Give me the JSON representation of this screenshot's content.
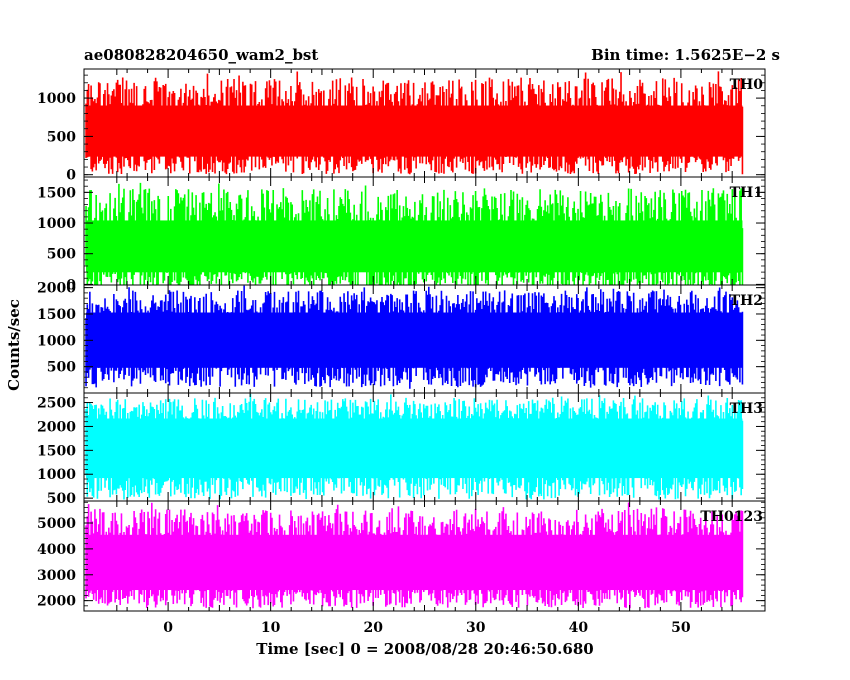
{
  "header": {
    "title": "ae080828204650_wam2_bst",
    "bin_time": "Bin time: 1.5625E−2 s"
  },
  "chart_data": {
    "type": "line",
    "xlabel": "Time [sec] 0 = 2008/08/28 20:46:50.680",
    "ylabel": "Counts/sec",
    "xlim": [
      -8.2,
      58.2
    ],
    "x_ticks": [
      0,
      10,
      20,
      30,
      40,
      50
    ],
    "x_ticklabels": [
      "0",
      "10",
      "20",
      "30",
      "40",
      "50"
    ],
    "data_x_range": [
      -8.0,
      56.0
    ],
    "panels": [
      {
        "name": "TH0",
        "color": "#ff0000",
        "ylim": [
          -30,
          1380
        ],
        "yticks": [
          0,
          500,
          1000
        ],
        "yticklabels": [
          "0",
          "500",
          "1000"
        ],
        "series": {
          "mean": 560,
          "typical_low": 200,
          "typical_high": 950,
          "max": 1360,
          "min": 40
        }
      },
      {
        "name": "TH1",
        "color": "#00ff00",
        "ylim": [
          -10,
          1750
        ],
        "yticks": [
          0,
          500,
          1000,
          1500
        ],
        "yticklabels": [
          "0",
          "500",
          "1000",
          "1500"
        ],
        "series": {
          "mean": 620,
          "typical_low": 150,
          "typical_high": 1100,
          "max": 1700,
          "min": 40
        }
      },
      {
        "name": "TH2",
        "color": "#0000ff",
        "ylim": [
          0,
          2050
        ],
        "yticks": [
          500,
          1000,
          1500,
          2000
        ],
        "yticklabels": [
          "500",
          "1000",
          "1500",
          "2000"
        ],
        "series": {
          "mean": 1000,
          "typical_low": 420,
          "typical_high": 1600,
          "max": 2050,
          "min": 80
        }
      },
      {
        "name": "TH3",
        "color": "#00ffff",
        "ylim": [
          440,
          2700
        ],
        "yticks": [
          500,
          1000,
          1500,
          2000,
          2500
        ],
        "yticklabels": [
          "500",
          "1000",
          "1500",
          "2000",
          "2500"
        ],
        "series": {
          "mean": 1550,
          "typical_low": 850,
          "typical_high": 2250,
          "max": 2700,
          "min": 500
        }
      },
      {
        "name": "TH0123",
        "color": "#ff00ff",
        "ylim": [
          1600,
          5850
        ],
        "yticks": [
          2000,
          3000,
          4000,
          5000
        ],
        "yticklabels": [
          "2000",
          "3000",
          "4000",
          "5000"
        ],
        "series": {
          "mean": 3400,
          "typical_low": 2300,
          "typical_high": 4700,
          "max": 5800,
          "min": 1700
        }
      }
    ]
  }
}
